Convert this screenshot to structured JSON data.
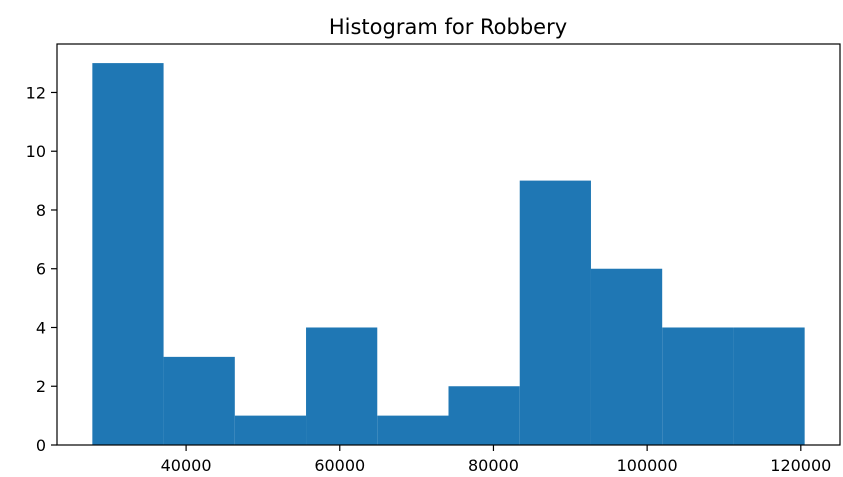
{
  "chart_data": {
    "type": "bar",
    "title": "Histogram for Robbery",
    "xlabel": "",
    "ylabel": "",
    "bin_edges": [
      27800,
      37070,
      46340,
      55610,
      64880,
      74150,
      83420,
      92690,
      101960,
      111230,
      120500
    ],
    "counts": [
      13,
      3,
      1,
      4,
      1,
      2,
      9,
      6,
      4,
      4
    ],
    "xlim": [
      23200,
      125100
    ],
    "ylim": [
      0,
      13.65
    ],
    "x_ticks": [
      40000,
      60000,
      80000,
      100000,
      120000
    ],
    "x_tick_labels": [
      "40000",
      "60000",
      "80000",
      "100000",
      "120000"
    ],
    "y_ticks": [
      0,
      2,
      4,
      6,
      8,
      10,
      12
    ],
    "y_tick_labels": [
      "0",
      "2",
      "4",
      "6",
      "8",
      "10",
      "12"
    ],
    "bar_color": "#1f77b4",
    "grid": false,
    "legend": "none"
  }
}
